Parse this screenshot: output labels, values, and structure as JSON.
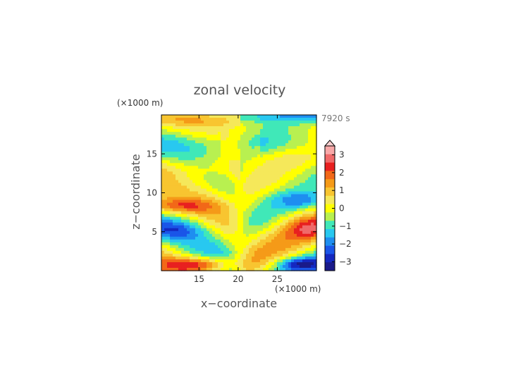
{
  "chart_data": {
    "type": "heatmap",
    "title": "zonal velocity",
    "xlabel": "x−coordinate",
    "ylabel": "z−coordinate",
    "x_unit": "(×1000 m)",
    "y_unit": "(×1000 m)",
    "time_label": "7920 s",
    "xlim": [
      10.2,
      30
    ],
    "ylim": [
      0,
      20
    ],
    "x_ticks": [
      15,
      20,
      25
    ],
    "y_ticks": [
      5,
      10,
      15
    ],
    "colorbar": {
      "ticks": [
        "3",
        "2",
        "1",
        "0",
        "−1",
        "−2",
        "−3"
      ],
      "tick_values": [
        3,
        2,
        1,
        0,
        -1,
        -2,
        -3
      ],
      "levels": [
        3.5,
        3.0,
        2.5,
        2.0,
        1.5,
        1.0,
        0.5,
        0.0,
        -0.5,
        -1.0,
        -1.5,
        -2.0,
        -2.5,
        -3.0,
        -3.5
      ],
      "colors": [
        "#f8a8a8",
        "#f06a6a",
        "#e82020",
        "#f26818",
        "#f59a18",
        "#f8c530",
        "#f5e85a",
        "#ffff00",
        "#b8f050",
        "#40e8b8",
        "#28c8f0",
        "#1e8ef0",
        "#1a55e8",
        "#1428c0",
        "#1a1a8a"
      ],
      "extend_top_color": "#fbd0d0"
    },
    "grid": false
  }
}
